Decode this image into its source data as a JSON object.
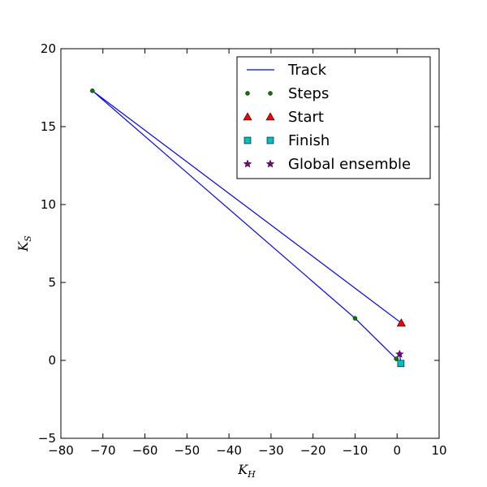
{
  "chart_data": {
    "type": "line",
    "xlabel_main": "K",
    "xlabel_sub": "H",
    "ylabel_main": "K",
    "ylabel_sub": "S",
    "xlim": [
      -80,
      10
    ],
    "ylim": [
      -5,
      20
    ],
    "xticks": [
      -80,
      -70,
      -60,
      -50,
      -40,
      -30,
      -20,
      -10,
      0,
      10
    ],
    "yticks": [
      -5,
      0,
      5,
      10,
      15,
      20
    ],
    "tick_labels_x": [
      "−80",
      "−70",
      "−60",
      "−50",
      "−40",
      "−30",
      "−20",
      "−10",
      "0",
      "10"
    ],
    "tick_labels_y": [
      "−5",
      "0",
      "5",
      "10",
      "15",
      "20"
    ],
    "grid": false,
    "legend_position": "top-right",
    "series": [
      {
        "name": "Track",
        "kind": "line",
        "color": "#0000ff",
        "points": [
          [
            1.0,
            2.4
          ],
          [
            -72.5,
            17.3
          ],
          [
            -10.0,
            2.7
          ],
          [
            -0.2,
            0.1
          ],
          [
            0.6,
            0.4
          ],
          [
            0.9,
            -0.2
          ]
        ]
      },
      {
        "name": "Steps",
        "kind": "dot",
        "color": "#007f00",
        "points": [
          [
            -72.5,
            17.3
          ],
          [
            -10.0,
            2.7
          ],
          [
            -0.2,
            0.1
          ]
        ]
      },
      {
        "name": "Start",
        "kind": "triangle",
        "color": "#ff0000",
        "points": [
          [
            1.0,
            2.4
          ]
        ]
      },
      {
        "name": "Finish",
        "kind": "square",
        "color": "#00bfbf",
        "points": [
          [
            0.9,
            -0.2
          ]
        ]
      },
      {
        "name": "Global ensemble",
        "kind": "star",
        "color": "#800080",
        "points": [
          [
            0.6,
            0.4
          ]
        ]
      }
    ]
  }
}
